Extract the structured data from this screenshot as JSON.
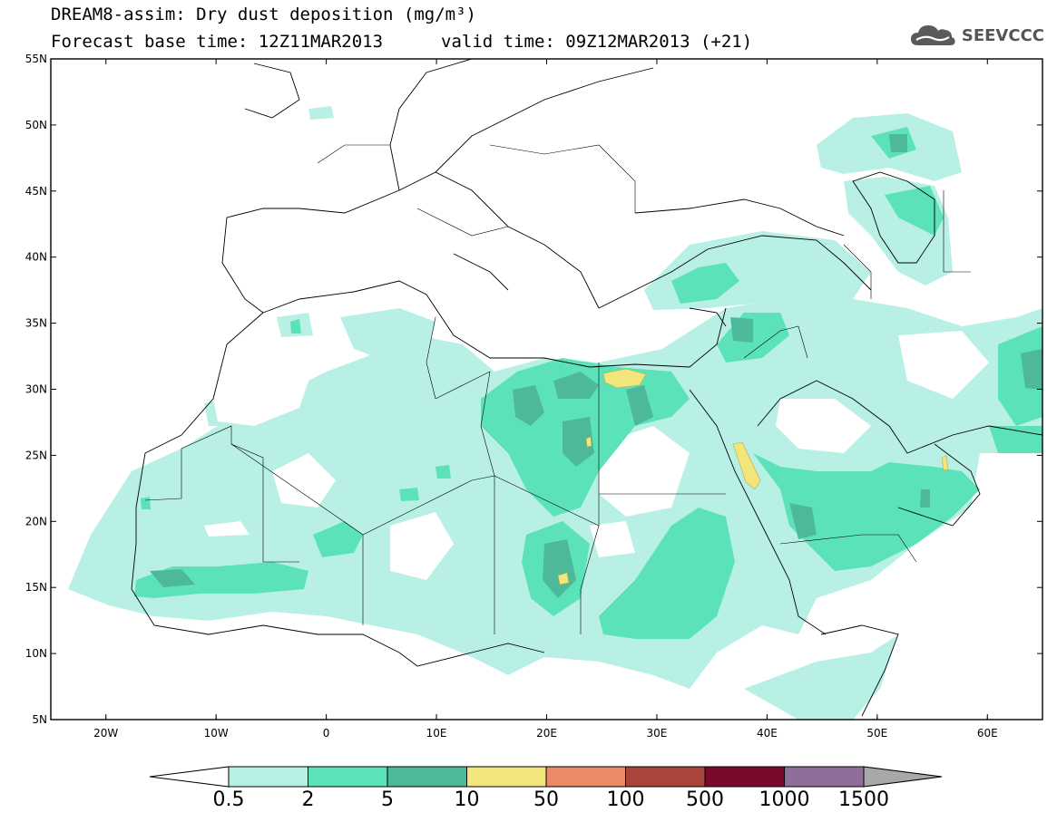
{
  "title": {
    "line1": "DREAM8-assim: Dry dust deposition (mg/m³)",
    "base_time": "Forecast base time: 12Z11MAR2013",
    "valid_time": "valid time: 09Z12MAR2013 (+21)"
  },
  "logo": {
    "text": "SEEVCCC",
    "icon": "cloud-icon"
  },
  "map": {
    "lon_range": [
      -25,
      65
    ],
    "lat_range": [
      5,
      55
    ],
    "lon_ticks": [
      {
        "value": -20,
        "label": "20W"
      },
      {
        "value": -10,
        "label": "10W"
      },
      {
        "value": 0,
        "label": "0"
      },
      {
        "value": 10,
        "label": "10E"
      },
      {
        "value": 20,
        "label": "20E"
      },
      {
        "value": 30,
        "label": "30E"
      },
      {
        "value": 40,
        "label": "40E"
      },
      {
        "value": 50,
        "label": "50E"
      },
      {
        "value": 60,
        "label": "60E"
      }
    ],
    "lat_ticks": [
      {
        "value": 55,
        "label": "55N"
      },
      {
        "value": 50,
        "label": "50N"
      },
      {
        "value": 45,
        "label": "45N"
      },
      {
        "value": 40,
        "label": "40N"
      },
      {
        "value": 35,
        "label": "35N"
      },
      {
        "value": 30,
        "label": "30N"
      },
      {
        "value": 25,
        "label": "25N"
      },
      {
        "value": 20,
        "label": "20N"
      },
      {
        "value": 15,
        "label": "15N"
      },
      {
        "value": 10,
        "label": "10N"
      },
      {
        "value": 5,
        "label": "5N"
      }
    ]
  },
  "colorbar": {
    "colors": [
      "#b9f0e6",
      "#5ce2b8",
      "#4db99a",
      "#f2e57c",
      "#ea8a66",
      "#a9463c",
      "#7a0a2c",
      "#8f6e9a"
    ],
    "low_arrow_color": "#ffffff",
    "high_arrow_color": "#a8a8a8",
    "labels": [
      "0.5",
      "2",
      "5",
      "10",
      "50",
      "100",
      "500",
      "1000",
      "1500"
    ]
  },
  "colors": {
    "level_0_5": "#b9f0e6",
    "level_2": "#5ce2b8",
    "level_5": "#4db99a",
    "level_10": "#f2e57c"
  }
}
